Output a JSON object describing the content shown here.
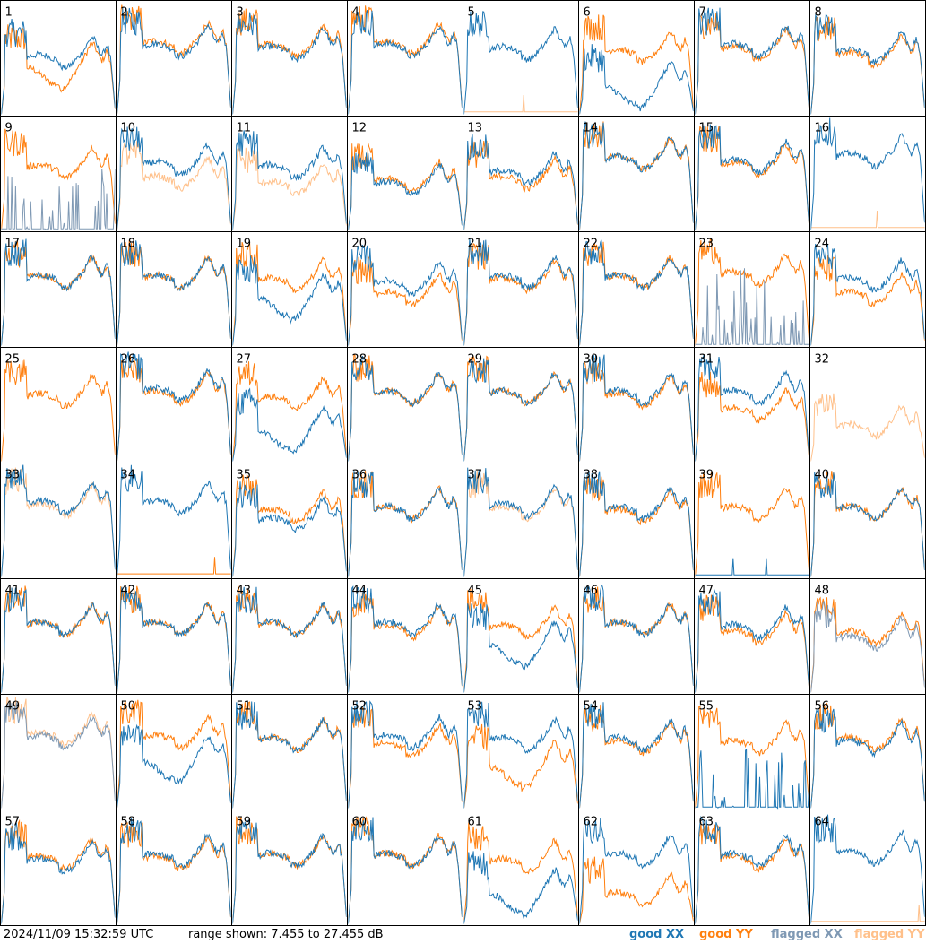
{
  "footer": {
    "timestamp": "2024/11/09 15:32:59 UTC",
    "range_text": "range shown: 7.455 to 27.455 dB"
  },
  "legend": [
    {
      "prefix": "good ",
      "pol": "XX",
      "color": "#1f77b4"
    },
    {
      "prefix": "good ",
      "pol": "YY",
      "color": "#ff7f0e"
    },
    {
      "prefix": "flagged ",
      "pol": "XX",
      "color": "#7f99b4"
    },
    {
      "prefix": "flagged ",
      "pol": "YY",
      "color": "#ffc08a"
    }
  ],
  "chart_data": {
    "type": "line",
    "ylim": [
      7.455,
      27.455
    ],
    "y_unit": "dB",
    "grid_rows": 8,
    "grid_cols": 8,
    "colors": {
      "good_xx": "#1f77b4",
      "good_yy": "#ff7f0e",
      "flagged_xx": "#7f99b4",
      "flagged_yy": "#ffc08a"
    },
    "panels": [
      {
        "id": "1",
        "xx": "good",
        "yy": "good",
        "xx_level": 17.5,
        "yy_level": 16.5,
        "xx_shape": "normal",
        "yy_shape": "dip"
      },
      {
        "id": "2",
        "xx": "good",
        "yy": "good",
        "xx_level": 19.5,
        "yy_level": 20.0,
        "xx_shape": "normal",
        "yy_shape": "normal"
      },
      {
        "id": "3",
        "xx": "good",
        "yy": "good",
        "xx_level": 19.0,
        "yy_level": 19.5,
        "xx_shape": "normal",
        "yy_shape": "normal"
      },
      {
        "id": "4",
        "xx": "good",
        "yy": "good",
        "xx_level": 19.5,
        "yy_level": 20.0,
        "xx_shape": "normal",
        "yy_shape": "normal"
      },
      {
        "id": "5",
        "xx": "good",
        "yy": "flagged",
        "xx_level": 19.0,
        "yy_level": 7.9,
        "xx_shape": "normal",
        "yy_shape": "dead"
      },
      {
        "id": "6",
        "xx": "good",
        "yy": "good",
        "xx_level": 13.0,
        "yy_level": 18.5,
        "xx_shape": "dip",
        "yy_shape": "normal"
      },
      {
        "id": "7",
        "xx": "good",
        "yy": "good",
        "xx_level": 19.5,
        "yy_level": 19.0,
        "xx_shape": "normal",
        "yy_shape": "normal"
      },
      {
        "id": "8",
        "xx": "good",
        "yy": "good",
        "xx_level": 18.5,
        "yy_level": 18.0,
        "xx_shape": "normal",
        "yy_shape": "normal"
      },
      {
        "id": "9",
        "xx": "flagged",
        "yy": "good",
        "xx_level": 8.5,
        "yy_level": 18.5,
        "xx_shape": "spiky",
        "yy_shape": "normal"
      },
      {
        "id": "10",
        "xx": "good",
        "yy": "flagged",
        "xx_level": 19.0,
        "yy_level": 16.5,
        "xx_shape": "normal",
        "yy_shape": "normal"
      },
      {
        "id": "11",
        "xx": "good",
        "yy": "flagged",
        "xx_level": 18.5,
        "yy_level": 15.5,
        "xx_shape": "normal",
        "yy_shape": "normal"
      },
      {
        "id": "12",
        "xx": "good",
        "yy": "good",
        "xx_level": 15.5,
        "yy_level": 16.0,
        "xx_shape": "normal",
        "yy_shape": "normal"
      },
      {
        "id": "13",
        "xx": "good",
        "yy": "good",
        "xx_level": 17.5,
        "yy_level": 16.5,
        "xx_shape": "normal",
        "yy_shape": "normal"
      },
      {
        "id": "14",
        "xx": "good",
        "yy": "good",
        "xx_level": 20.0,
        "yy_level": 20.0,
        "xx_shape": "normal",
        "yy_shape": "normal"
      },
      {
        "id": "15",
        "xx": "good",
        "yy": "good",
        "xx_level": 19.5,
        "yy_level": 19.0,
        "xx_shape": "normal",
        "yy_shape": "normal"
      },
      {
        "id": "16",
        "xx": "good",
        "yy": "flagged",
        "xx_level": 20.5,
        "yy_level": 7.9,
        "xx_shape": "normal",
        "yy_shape": "dead"
      },
      {
        "id": "17",
        "xx": "good",
        "yy": "good",
        "xx_level": 19.5,
        "yy_level": 19.5,
        "xx_shape": "normal",
        "yy_shape": "normal"
      },
      {
        "id": "18",
        "xx": "good",
        "yy": "good",
        "xx_level": 19.5,
        "yy_level": 19.5,
        "xx_shape": "normal",
        "yy_shape": "normal"
      },
      {
        "id": "19",
        "xx": "good",
        "yy": "good",
        "xx_level": 16.5,
        "yy_level": 19.0,
        "xx_shape": "dip",
        "yy_shape": "normal"
      },
      {
        "id": "20",
        "xx": "good",
        "yy": "good",
        "xx_level": 18.5,
        "yy_level": 16.5,
        "xx_shape": "normal",
        "yy_shape": "normal"
      },
      {
        "id": "21",
        "xx": "good",
        "yy": "good",
        "xx_level": 19.5,
        "yy_level": 19.0,
        "xx_shape": "normal",
        "yy_shape": "normal"
      },
      {
        "id": "22",
        "xx": "good",
        "yy": "good",
        "xx_level": 19.5,
        "yy_level": 19.5,
        "xx_shape": "normal",
        "yy_shape": "normal"
      },
      {
        "id": "23",
        "xx": "flagged",
        "yy": "good",
        "xx_level": 11.5,
        "yy_level": 20.0,
        "xx_shape": "spiky",
        "yy_shape": "normal"
      },
      {
        "id": "24",
        "xx": "good",
        "yy": "good",
        "xx_level": 19.0,
        "yy_level": 16.5,
        "xx_shape": "normal",
        "yy_shape": "normal"
      },
      {
        "id": "25",
        "xx": "none",
        "yy": "good",
        "xx_level": 7.7,
        "yy_level": 19.0,
        "xx_shape": "dead",
        "yy_shape": "normal"
      },
      {
        "id": "26",
        "xx": "good",
        "yy": "good",
        "xx_level": 20.0,
        "yy_level": 19.5,
        "xx_shape": "normal",
        "yy_shape": "normal"
      },
      {
        "id": "27",
        "xx": "good",
        "yy": "good",
        "xx_level": 13.5,
        "yy_level": 18.5,
        "xx_shape": "dip",
        "yy_shape": "normal"
      },
      {
        "id": "28",
        "xx": "good",
        "yy": "good",
        "xx_level": 19.5,
        "yy_level": 19.5,
        "xx_shape": "normal",
        "yy_shape": "normal"
      },
      {
        "id": "29",
        "xx": "good",
        "yy": "good",
        "xx_level": 19.5,
        "yy_level": 19.5,
        "xx_shape": "normal",
        "yy_shape": "normal"
      },
      {
        "id": "30",
        "xx": "good",
        "yy": "good",
        "xx_level": 19.5,
        "yy_level": 19.0,
        "xx_shape": "normal",
        "yy_shape": "normal"
      },
      {
        "id": "31",
        "xx": "good",
        "yy": "good",
        "xx_level": 19.5,
        "yy_level": 16.5,
        "xx_shape": "normal",
        "yy_shape": "normal"
      },
      {
        "id": "32",
        "xx": "none",
        "yy": "flagged",
        "xx_level": 7.7,
        "yy_level": 13.5,
        "xx_shape": "dead",
        "yy_shape": "normal"
      },
      {
        "id": "33",
        "xx": "good",
        "yy": "flagged",
        "xx_level": 20.5,
        "yy_level": 20.0,
        "xx_shape": "normal",
        "yy_shape": "normal"
      },
      {
        "id": "34",
        "xx": "good",
        "yy": "good",
        "xx_level": 20.5,
        "yy_level": 8.0,
        "xx_shape": "normal",
        "yy_shape": "dead"
      },
      {
        "id": "35",
        "xx": "good",
        "yy": "good",
        "xx_level": 17.5,
        "yy_level": 19.0,
        "xx_shape": "normal",
        "yy_shape": "normal"
      },
      {
        "id": "36",
        "xx": "good",
        "yy": "good",
        "xx_level": 19.5,
        "yy_level": 19.5,
        "xx_shape": "normal",
        "yy_shape": "normal"
      },
      {
        "id": "37",
        "xx": "good",
        "yy": "flagged",
        "xx_level": 20.0,
        "yy_level": 19.5,
        "xx_shape": "normal",
        "yy_shape": "normal"
      },
      {
        "id": "38",
        "xx": "good",
        "yy": "good",
        "xx_level": 19.5,
        "yy_level": 19.0,
        "xx_shape": "normal",
        "yy_shape": "normal"
      },
      {
        "id": "39",
        "xx": "good",
        "yy": "good",
        "xx_level": 7.8,
        "yy_level": 19.5,
        "xx_shape": "dead",
        "yy_shape": "normal"
      },
      {
        "id": "40",
        "xx": "good",
        "yy": "good",
        "xx_level": 19.5,
        "yy_level": 19.5,
        "xx_shape": "normal",
        "yy_shape": "normal"
      },
      {
        "id": "41",
        "xx": "good",
        "yy": "good",
        "xx_level": 19.5,
        "yy_level": 19.5,
        "xx_shape": "normal",
        "yy_shape": "normal"
      },
      {
        "id": "42",
        "xx": "good",
        "yy": "good",
        "xx_level": 19.5,
        "yy_level": 19.5,
        "xx_shape": "normal",
        "yy_shape": "normal"
      },
      {
        "id": "43",
        "xx": "good",
        "yy": "good",
        "xx_level": 19.5,
        "yy_level": 19.5,
        "xx_shape": "normal",
        "yy_shape": "normal"
      },
      {
        "id": "44",
        "xx": "good",
        "yy": "good",
        "xx_level": 19.5,
        "yy_level": 19.0,
        "xx_shape": "normal",
        "yy_shape": "normal"
      },
      {
        "id": "45",
        "xx": "good",
        "yy": "good",
        "xx_level": 16.5,
        "yy_level": 19.0,
        "xx_shape": "dip",
        "yy_shape": "normal"
      },
      {
        "id": "46",
        "xx": "good",
        "yy": "good",
        "xx_level": 19.5,
        "yy_level": 19.5,
        "xx_shape": "normal",
        "yy_shape": "normal"
      },
      {
        "id": "47",
        "xx": "good",
        "yy": "good",
        "xx_level": 19.0,
        "yy_level": 18.0,
        "xx_shape": "normal",
        "yy_shape": "normal"
      },
      {
        "id": "48",
        "xx": "flagged",
        "yy": "good",
        "xx_level": 17.0,
        "yy_level": 18.0,
        "xx_shape": "normal",
        "yy_shape": "normal"
      },
      {
        "id": "49",
        "xx": "flagged",
        "yy": "flagged",
        "xx_level": 20.0,
        "yy_level": 20.5,
        "xx_shape": "normal",
        "yy_shape": "normal"
      },
      {
        "id": "50",
        "xx": "good",
        "yy": "good",
        "xx_level": 16.5,
        "yy_level": 20.0,
        "xx_shape": "dip",
        "yy_shape": "normal"
      },
      {
        "id": "51",
        "xx": "good",
        "yy": "good",
        "xx_level": 19.5,
        "yy_level": 19.5,
        "xx_shape": "normal",
        "yy_shape": "normal"
      },
      {
        "id": "52",
        "xx": "good",
        "yy": "good",
        "xx_level": 20.0,
        "yy_level": 18.5,
        "xx_shape": "normal",
        "yy_shape": "normal"
      },
      {
        "id": "53",
        "xx": "good",
        "yy": "good",
        "xx_level": 19.5,
        "yy_level": 15.5,
        "xx_shape": "normal",
        "yy_shape": "dip"
      },
      {
        "id": "54",
        "xx": "good",
        "yy": "good",
        "xx_level": 19.5,
        "yy_level": 19.0,
        "xx_shape": "normal",
        "yy_shape": "normal"
      },
      {
        "id": "55",
        "xx": "good",
        "yy": "good",
        "xx_level": 8.0,
        "yy_level": 19.0,
        "xx_shape": "spiky",
        "yy_shape": "normal"
      },
      {
        "id": "56",
        "xx": "good",
        "yy": "good",
        "xx_level": 19.0,
        "yy_level": 19.5,
        "xx_shape": "normal",
        "yy_shape": "normal"
      },
      {
        "id": "57",
        "xx": "good",
        "yy": "good",
        "xx_level": 18.5,
        "yy_level": 19.0,
        "xx_shape": "normal",
        "yy_shape": "normal"
      },
      {
        "id": "58",
        "xx": "good",
        "yy": "good",
        "xx_level": 19.5,
        "yy_level": 19.0,
        "xx_shape": "normal",
        "yy_shape": "normal"
      },
      {
        "id": "59",
        "xx": "good",
        "yy": "good",
        "xx_level": 19.5,
        "yy_level": 19.5,
        "xx_shape": "normal",
        "yy_shape": "normal"
      },
      {
        "id": "60",
        "xx": "good",
        "yy": "good",
        "xx_level": 19.5,
        "yy_level": 19.5,
        "xx_shape": "normal",
        "yy_shape": "normal"
      },
      {
        "id": "61",
        "xx": "good",
        "yy": "good",
        "xx_level": 13.5,
        "yy_level": 18.5,
        "xx_shape": "dip",
        "yy_shape": "normal"
      },
      {
        "id": "62",
        "xx": "good",
        "yy": "good",
        "xx_level": 19.5,
        "yy_level": 12.5,
        "xx_shape": "normal",
        "yy_shape": "normal"
      },
      {
        "id": "63",
        "xx": "good",
        "yy": "good",
        "xx_level": 19.5,
        "yy_level": 19.0,
        "xx_shape": "normal",
        "yy_shape": "normal"
      },
      {
        "id": "64",
        "xx": "good",
        "yy": "flagged",
        "xx_level": 20.0,
        "yy_level": 7.9,
        "xx_shape": "normal",
        "yy_shape": "dead"
      }
    ]
  }
}
